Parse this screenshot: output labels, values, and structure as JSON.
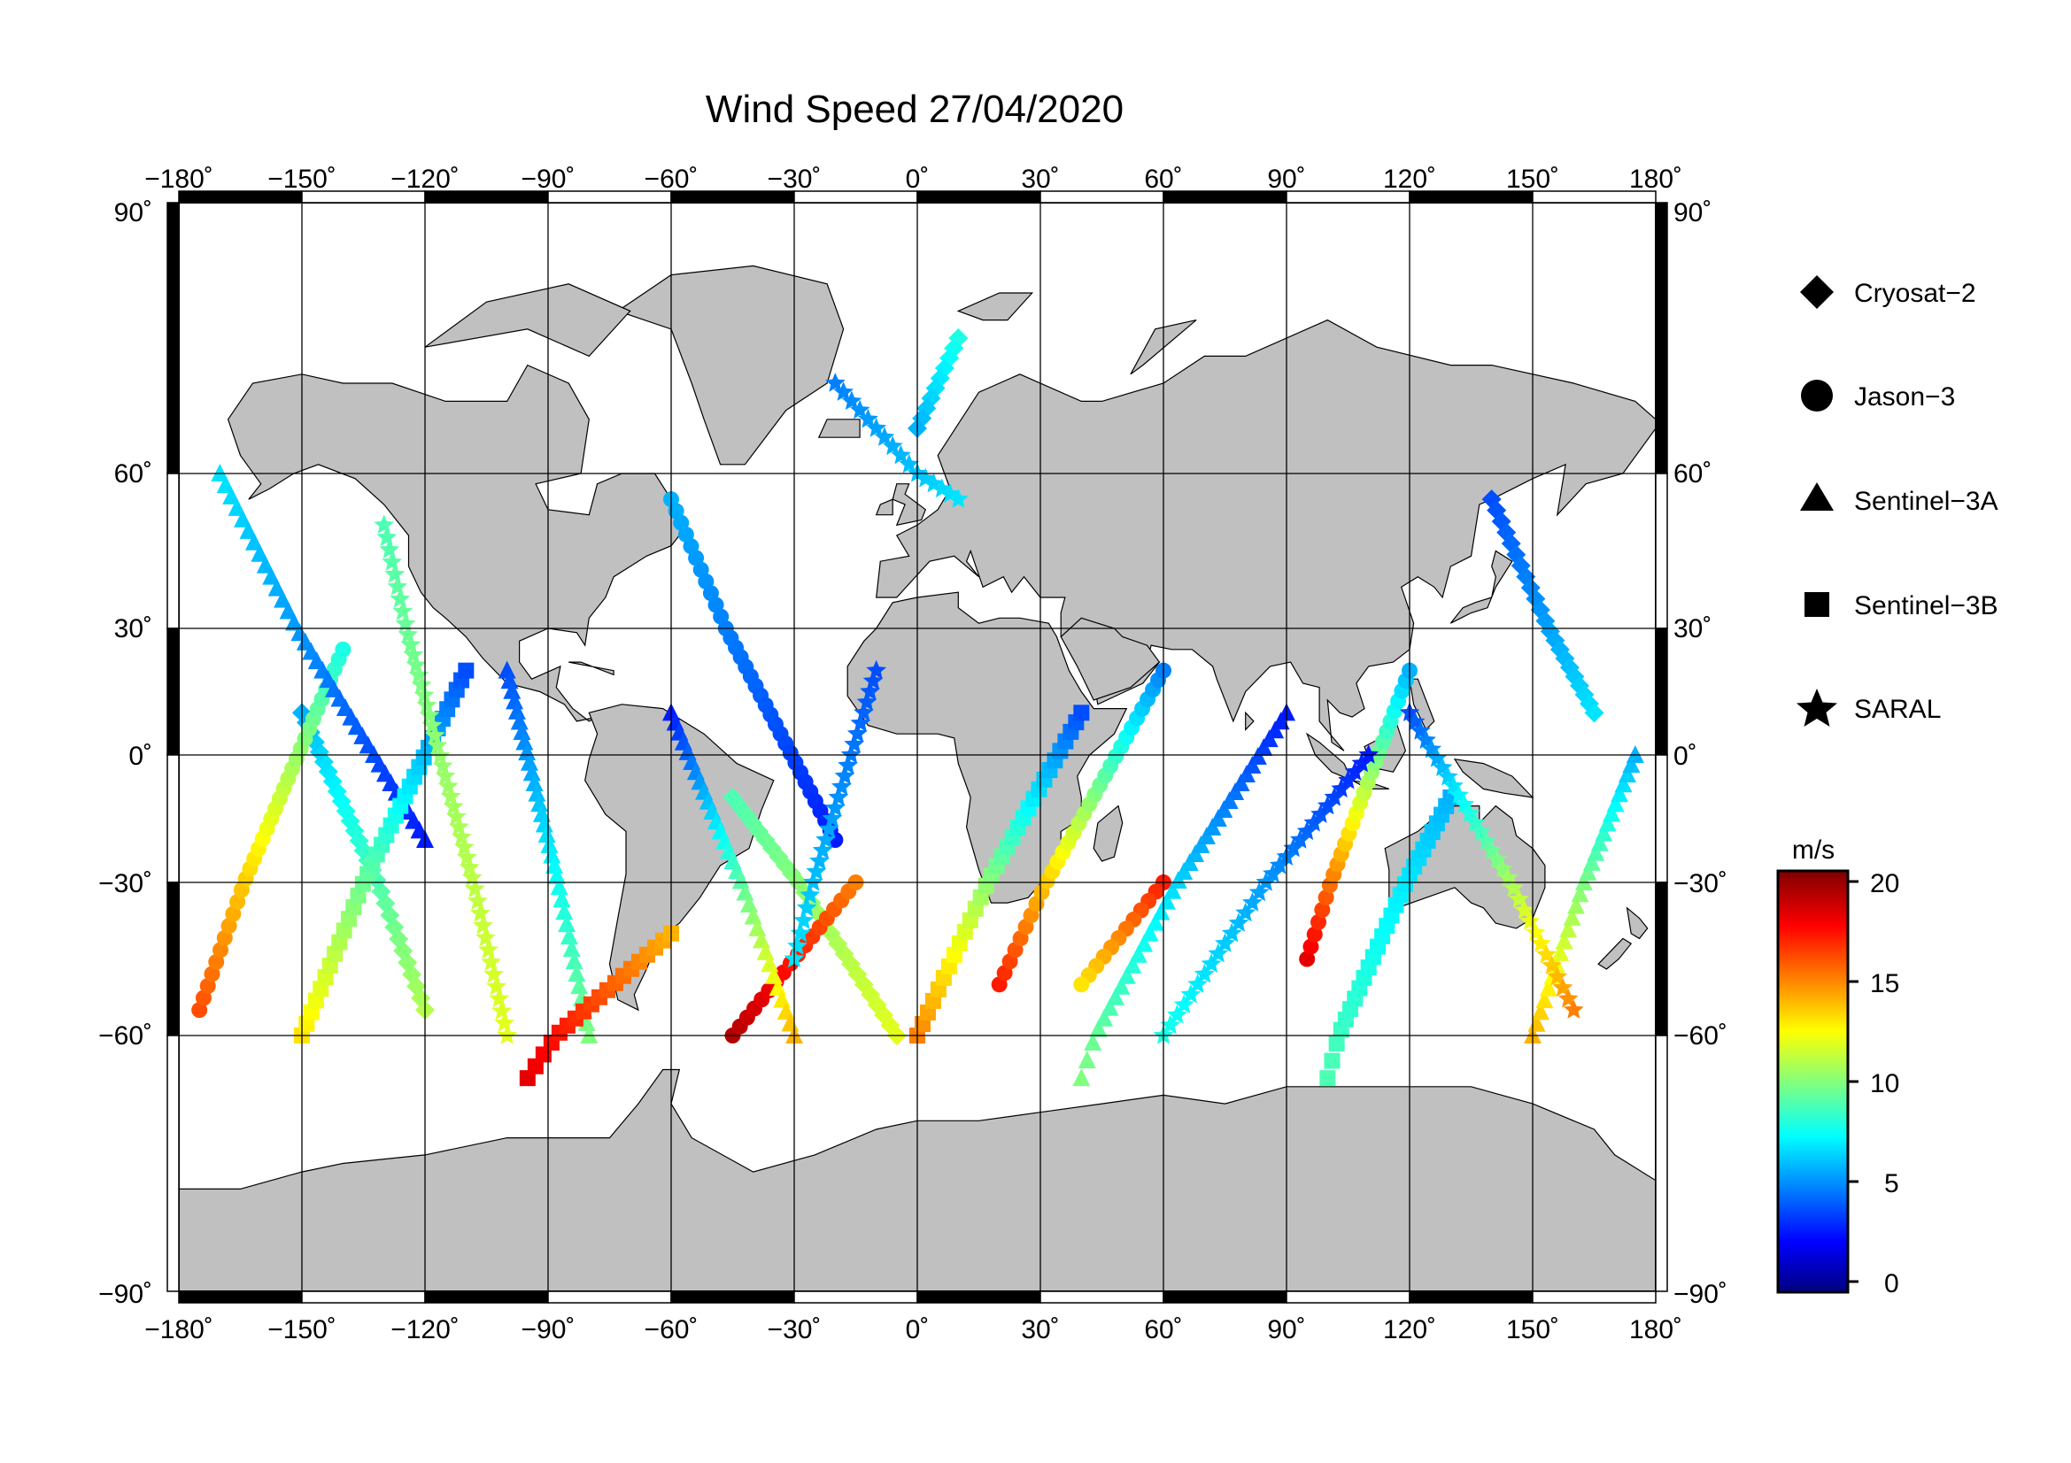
{
  "title": "Wind Speed 27/04/2020",
  "colors": {
    "land": "#c0c0c0",
    "ocean": "#ffffff",
    "frame": "#000000",
    "grid": "#000000"
  },
  "map": {
    "projection": "equirectangular",
    "lon_range": [
      -180,
      180
    ],
    "lat_range": [
      -90,
      90
    ],
    "grid": true,
    "lon_ticks": [
      "−180˚",
      "−150˚",
      "−120˚",
      "−90˚",
      "−60˚",
      "−30˚",
      "0˚",
      "30˚",
      "60˚",
      "90˚",
      "120˚",
      "150˚",
      "180˚"
    ],
    "lat_ticks": [
      "90˚",
      "60˚",
      "30˚",
      "0˚",
      "−30˚",
      "−60˚",
      "−90˚"
    ]
  },
  "legend": {
    "placement": "right",
    "items": [
      {
        "label": "Cryosat−2",
        "marker": "diamond-icon"
      },
      {
        "label": "Jason−3",
        "marker": "circle-icon"
      },
      {
        "label": "Sentinel−3A",
        "marker": "triangle-icon"
      },
      {
        "label": "Sentinel−3B",
        "marker": "square-icon"
      },
      {
        "label": "SARAL",
        "marker": "star-icon"
      }
    ]
  },
  "colorbar": {
    "unit": "m/s",
    "range": [
      0,
      20
    ],
    "ticks": [
      "20",
      "15",
      "10",
      "5",
      "0"
    ],
    "colormap": "jet"
  },
  "chart_data": {
    "type": "scatter",
    "title": "Wind Speed 27/04/2020",
    "x_range": [
      -180,
      180
    ],
    "y_range": [
      -90,
      90
    ],
    "grid": true,
    "legend_placement": "right",
    "color_value": "wind speed (m/s)",
    "color_range": [
      0,
      20
    ],
    "series": [
      {
        "name": "Cryosat−2",
        "marker": "diamond",
        "tracks": [
          {
            "lon": [
              10,
              0
            ],
            "lat": [
              75,
              65
            ],
            "values": [
              8,
              6
            ]
          },
          {
            "lon": [
              -5,
              -45
            ],
            "lat": [
              -60,
              -10
            ],
            "values": [
              12,
              9
            ]
          },
          {
            "lon": [
              140,
              165
            ],
            "lat": [
              55,
              10
            ],
            "values": [
              4,
              7
            ]
          },
          {
            "lon": [
              -120,
              -150
            ],
            "lat": [
              -55,
              10
            ],
            "values": [
              11,
              6
            ]
          }
        ]
      },
      {
        "name": "Jason−3",
        "marker": "circle",
        "tracks": [
          {
            "lon": [
              -175,
              -140
            ],
            "lat": [
              -55,
              25
            ],
            "values": [
              16,
              8
            ]
          },
          {
            "lon": [
              -60,
              -20
            ],
            "lat": [
              55,
              -20
            ],
            "values": [
              6,
              3
            ]
          },
          {
            "lon": [
              20,
              60
            ],
            "lat": [
              -50,
              20
            ],
            "values": [
              17,
              5
            ]
          },
          {
            "lon": [
              95,
              120
            ],
            "lat": [
              -45,
              20
            ],
            "values": [
              18,
              6
            ]
          },
          {
            "lon": [
              -45,
              -15
            ],
            "lat": [
              -60,
              -30
            ],
            "values": [
              19,
              15
            ]
          },
          {
            "lon": [
              60,
              40
            ],
            "lat": [
              -30,
              -50
            ],
            "values": [
              17,
              13
            ]
          }
        ]
      },
      {
        "name": "Sentinel−3A",
        "marker": "triangle",
        "tracks": [
          {
            "lon": [
              -170,
              -120
            ],
            "lat": [
              60,
              -20
            ],
            "values": [
              7,
              3
            ]
          },
          {
            "lon": [
              -100,
              -80
            ],
            "lat": [
              20,
              -60
            ],
            "values": [
              4,
              10
            ]
          },
          {
            "lon": [
              40,
              90
            ],
            "lat": [
              -65,
              10
            ],
            "values": [
              10,
              3
            ]
          },
          {
            "lon": [
              150,
              175
            ],
            "lat": [
              -60,
              0
            ],
            "values": [
              14,
              6
            ]
          },
          {
            "lon": [
              -60,
              -30
            ],
            "lat": [
              10,
              -60
            ],
            "values": [
              3,
              14
            ]
          }
        ]
      },
      {
        "name": "Sentinel−3B",
        "marker": "square",
        "tracks": [
          {
            "lon": [
              -150,
              -110
            ],
            "lat": [
              -60,
              20
            ],
            "values": [
              13,
              4
            ]
          },
          {
            "lon": [
              0,
              40
            ],
            "lat": [
              -60,
              10
            ],
            "values": [
              15,
              4
            ]
          },
          {
            "lon": [
              100,
              130
            ],
            "lat": [
              -65,
              -10
            ],
            "values": [
              9,
              6
            ]
          },
          {
            "lon": [
              -95,
              -60
            ],
            "lat": [
              -65,
              -40
            ],
            "values": [
              18,
              14
            ]
          }
        ]
      },
      {
        "name": "SARAL",
        "marker": "star",
        "tracks": [
          {
            "lon": [
              -20,
              10
            ],
            "lat": [
              70,
              55
            ],
            "values": [
              5,
              7
            ]
          },
          {
            "lon": [
              -130,
              -100
            ],
            "lat": [
              50,
              -60
            ],
            "values": [
              9,
              12
            ]
          },
          {
            "lon": [
              60,
              110
            ],
            "lat": [
              -60,
              0
            ],
            "values": [
              8,
              3
            ]
          },
          {
            "lon": [
              -30,
              -10
            ],
            "lat": [
              -45,
              20
            ],
            "values": [
              7,
              4
            ]
          },
          {
            "lon": [
              120,
              160
            ],
            "lat": [
              10,
              -55
            ],
            "values": [
              4,
              15
            ]
          }
        ]
      }
    ]
  }
}
